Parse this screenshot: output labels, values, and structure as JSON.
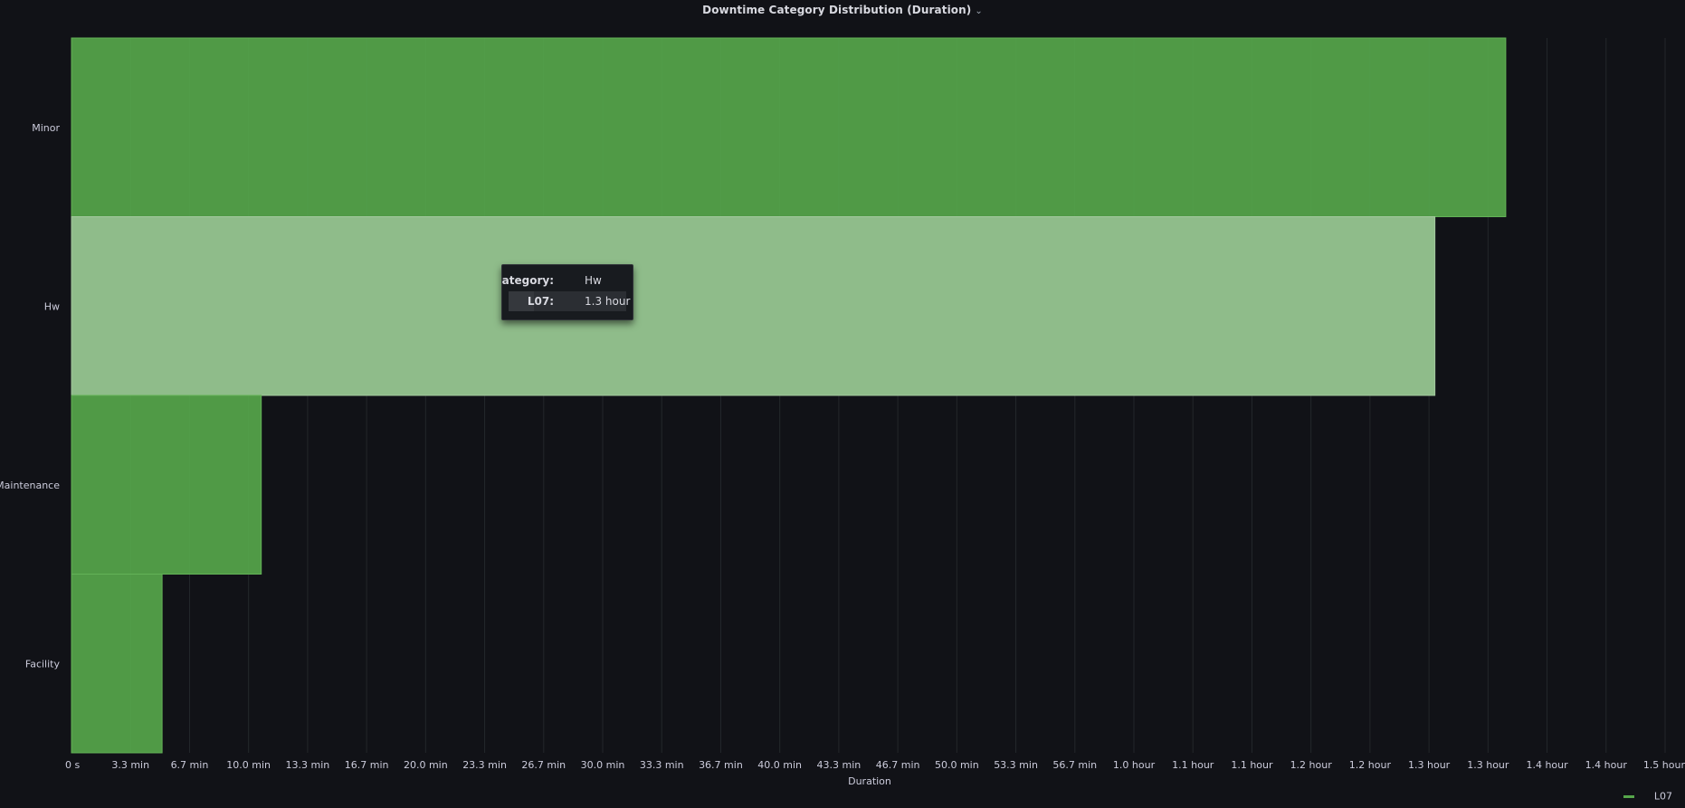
{
  "panel": {
    "title": "Downtime Category Distribution (Duration)",
    "title_menu_icon": "chevron-down-icon"
  },
  "chart_data": {
    "type": "bar",
    "orientation": "horizontal",
    "categories": [
      "Minor",
      "Hw",
      "Maintenance",
      "Facility"
    ],
    "series": [
      {
        "name": "L07",
        "values_seconds": [
          4860,
          4620,
          643,
          307
        ],
        "color": "#56a64b"
      }
    ],
    "hovered_category": "Hw",
    "xlabel": "Duration",
    "ylabel": "",
    "xlim_seconds": [
      0,
      5400
    ],
    "x_tick_labels": [
      "0 s",
      "3.3 min",
      "6.7 min",
      "10.0 min",
      "13.3 min",
      "16.7 min",
      "20.0 min",
      "23.3 min",
      "26.7 min",
      "30.0 min",
      "33.3 min",
      "36.7 min",
      "40.0 min",
      "43.3 min",
      "46.7 min",
      "50.0 min",
      "53.3 min",
      "56.7 min",
      "1.0 hour",
      "1.1 hour",
      "1.1 hour",
      "1.2 hour",
      "1.2 hour",
      "1.3 hour",
      "1.3 hour",
      "1.4 hour",
      "1.4 hour",
      "1.5 hour"
    ],
    "grid": true,
    "legend_position": "bottom-right"
  },
  "tooltip": {
    "category_key": "Category:",
    "category_value": "Hw",
    "series_key": "L07:",
    "series_value": "1.3 hour"
  },
  "legend": {
    "label": "L07"
  },
  "colors": {
    "bar": "#56a64b",
    "bar_highlight": "#8fbc8a",
    "background": "#111217",
    "grid": "#24272b",
    "text": "#ccccdc"
  }
}
